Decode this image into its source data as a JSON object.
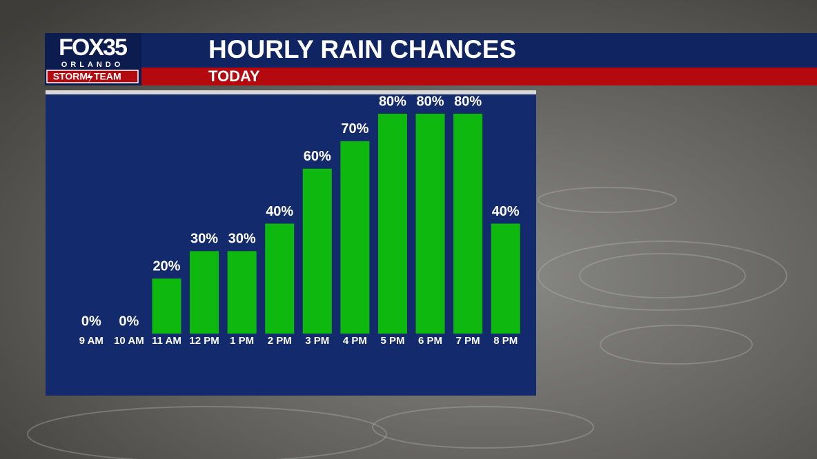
{
  "logo": {
    "brand": "FOX35",
    "city": "ORLANDO",
    "team_left": "STORM",
    "team_right": "TEAM"
  },
  "chart_data": {
    "type": "bar",
    "title": "HOURLY RAIN CHANCES",
    "subtitle": "TODAY",
    "categories": [
      "9 AM",
      "10 AM",
      "11 AM",
      "12 PM",
      "1 PM",
      "2 PM",
      "3 PM",
      "4 PM",
      "5 PM",
      "6 PM",
      "7 PM",
      "8 PM"
    ],
    "values": [
      0,
      0,
      20,
      30,
      30,
      40,
      60,
      70,
      80,
      80,
      80,
      40
    ],
    "value_labels": [
      "0%",
      "0%",
      "20%",
      "30%",
      "30%",
      "40%",
      "60%",
      "70%",
      "80%",
      "80%",
      "80%",
      "40%"
    ],
    "color": "#0fb80f"
  }
}
